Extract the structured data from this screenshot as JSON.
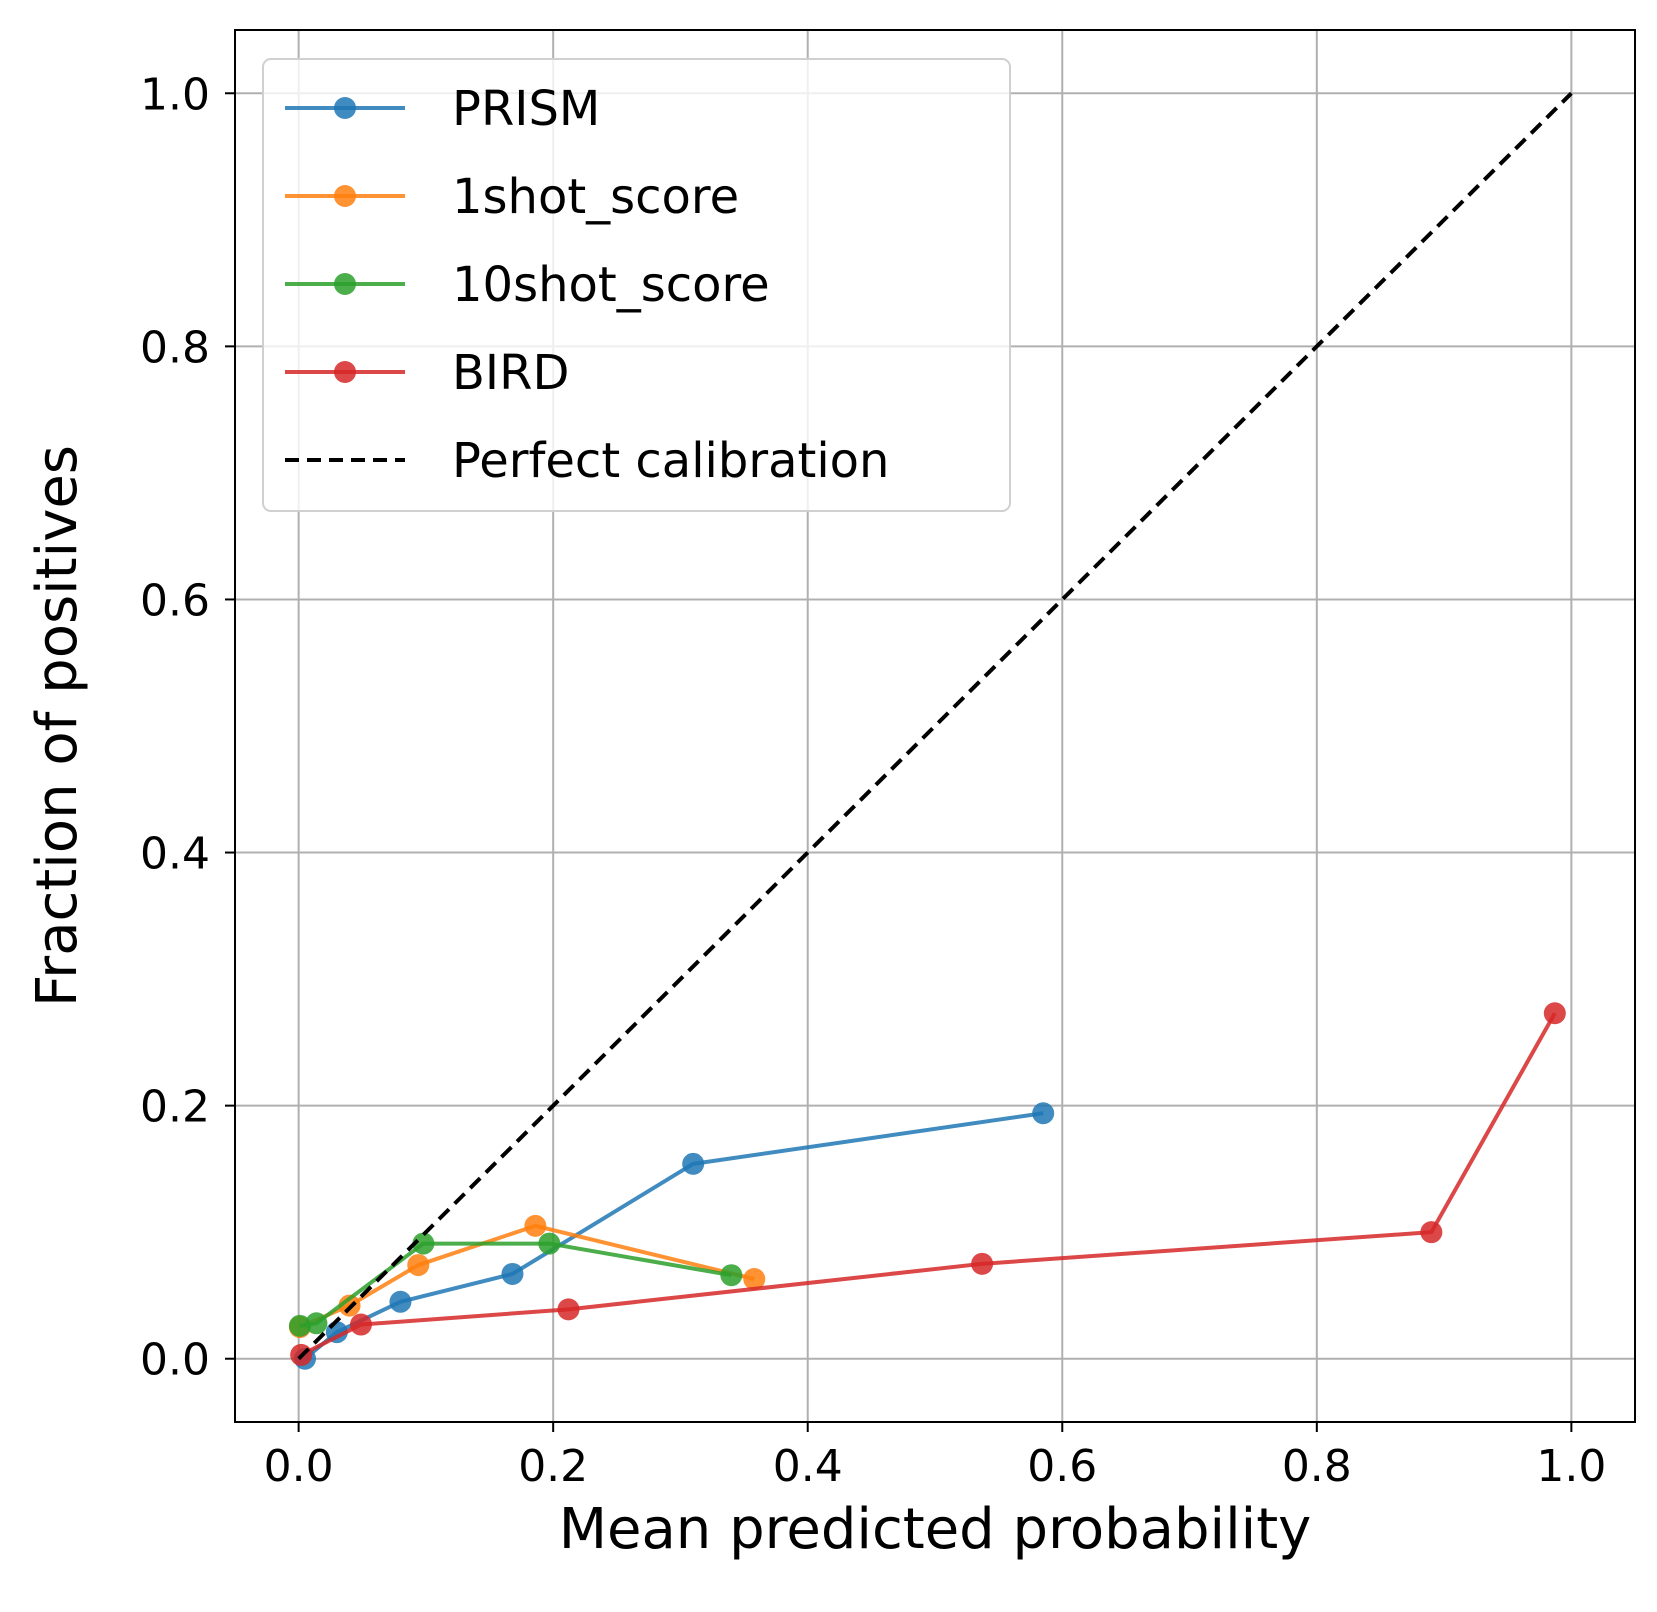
{
  "chart_data": {
    "type": "line",
    "title": "",
    "xlabel": "Mean predicted probability",
    "ylabel": "Fraction of positives",
    "xlim": [
      -0.05,
      1.05
    ],
    "ylim": [
      -0.05,
      1.05
    ],
    "xticks": [
      0.0,
      0.2,
      0.4,
      0.6,
      0.8,
      1.0
    ],
    "yticks": [
      0.0,
      0.2,
      0.4,
      0.6,
      0.8,
      1.0
    ],
    "xtick_labels": [
      "0.0",
      "0.2",
      "0.4",
      "0.6",
      "0.8",
      "1.0"
    ],
    "ytick_labels": [
      "0.0",
      "0.2",
      "0.4",
      "0.6",
      "0.8",
      "1.0"
    ],
    "grid": true,
    "legend_position": "top-left",
    "series": [
      {
        "name": "PRISM",
        "color": "#1f77b4",
        "marker": "circle",
        "x": [
          0.005,
          0.03,
          0.08,
          0.168,
          0.31,
          0.585
        ],
        "y": [
          0.0,
          0.021,
          0.045,
          0.067,
          0.154,
          0.194
        ]
      },
      {
        "name": "1shot_score",
        "color": "#ff7f0e",
        "marker": "circle",
        "x": [
          0.001,
          0.04,
          0.094,
          0.186,
          0.358
        ],
        "y": [
          0.025,
          0.042,
          0.074,
          0.105,
          0.063
        ]
      },
      {
        "name": "10shot_score",
        "color": "#2ca02c",
        "marker": "circle",
        "x": [
          0.001,
          0.014,
          0.098,
          0.197,
          0.34
        ],
        "y": [
          0.026,
          0.028,
          0.091,
          0.091,
          0.066
        ]
      },
      {
        "name": "BIRD",
        "color": "#d62728",
        "marker": "circle",
        "x": [
          0.002,
          0.049,
          0.212,
          0.537,
          0.89,
          0.987
        ],
        "y": [
          0.003,
          0.027,
          0.039,
          0.075,
          0.1,
          0.273
        ]
      },
      {
        "name": "Perfect calibration",
        "color": "#000000",
        "marker": "none",
        "dashed": true,
        "x": [
          0.0,
          1.0
        ],
        "y": [
          0.0,
          1.0
        ]
      }
    ]
  }
}
